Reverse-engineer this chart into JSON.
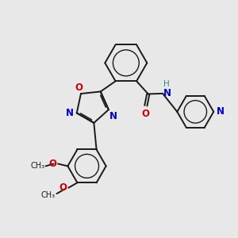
{
  "background_color": "#e8e8e8",
  "bond_color": "#1a1a1a",
  "N_color": "#0000cc",
  "O_color": "#cc0000",
  "H_color": "#2e8b8b",
  "C_color": "#1a1a1a",
  "figsize": [
    3.0,
    3.0
  ],
  "dpi": 100,
  "xlim": [
    0,
    10
  ],
  "ylim": [
    0,
    10
  ]
}
